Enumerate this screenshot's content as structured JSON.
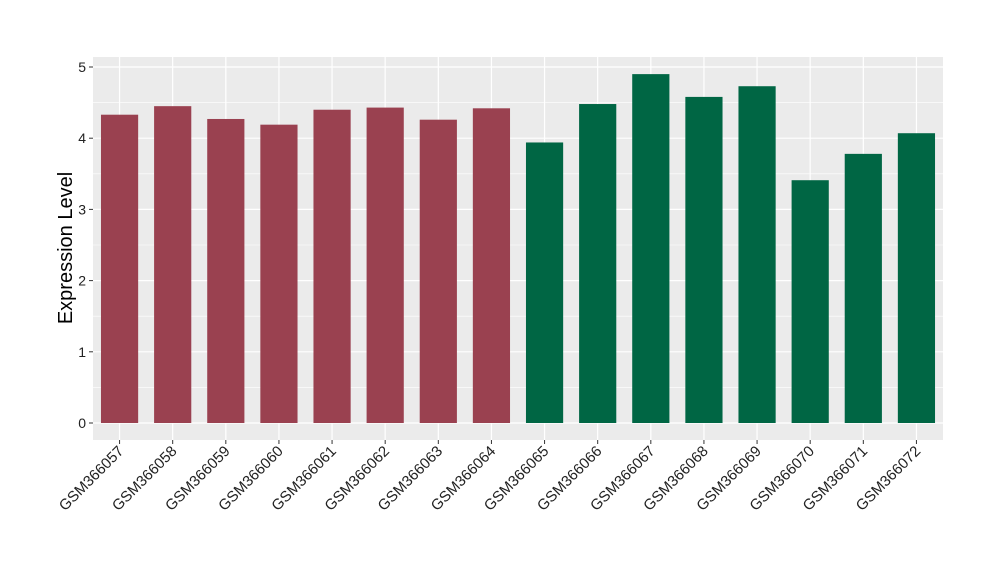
{
  "chart_data": {
    "type": "bar",
    "categories": [
      "GSM366057",
      "GSM366058",
      "GSM366059",
      "GSM366060",
      "GSM366061",
      "GSM366062",
      "GSM366063",
      "GSM366064",
      "GSM366065",
      "GSM366066",
      "GSM366067",
      "GSM366068",
      "GSM366069",
      "GSM366070",
      "GSM366071",
      "GSM366072"
    ],
    "values": [
      4.33,
      4.45,
      4.27,
      4.19,
      4.4,
      4.43,
      4.26,
      4.42,
      3.94,
      4.48,
      4.9,
      4.58,
      4.73,
      3.41,
      3.78,
      4.07
    ],
    "bar_colors": [
      "#9a4150",
      "#9a4150",
      "#9a4150",
      "#9a4150",
      "#9a4150",
      "#9a4150",
      "#9a4150",
      "#9a4150",
      "#006644",
      "#006644",
      "#006644",
      "#006644",
      "#006644",
      "#006644",
      "#006644",
      "#006644"
    ],
    "title": "",
    "xlabel": "",
    "ylabel": "Expression Level",
    "ylim": [
      -0.22,
      5.12
    ],
    "yticks": [
      0,
      1,
      2,
      3,
      4,
      5
    ],
    "grid": true,
    "panel_background": "#ebebeb",
    "grid_color": "#ffffff"
  }
}
